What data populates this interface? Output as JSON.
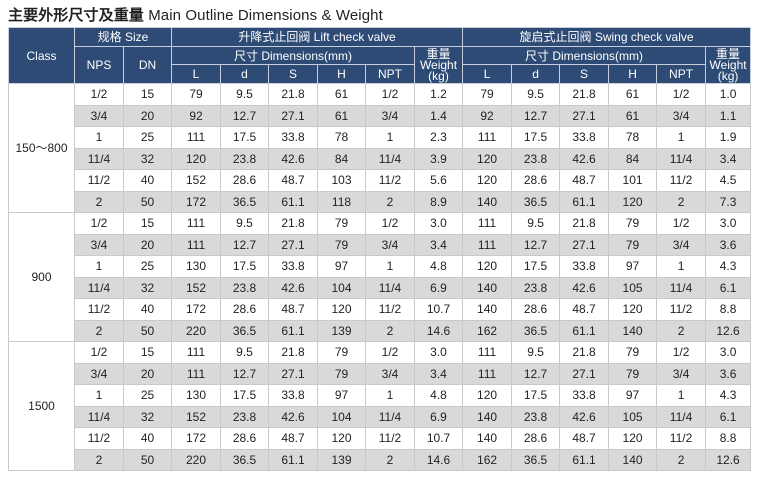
{
  "title": {
    "cn": "主要外形尺寸及重量",
    "en": "Main Outline Dimensions & Weight"
  },
  "headers": {
    "class": "Class",
    "size_group": "规格 Size",
    "nps": "NPS",
    "dn": "DN",
    "lift_valve": "升降式止回阀 Lift check valve",
    "swing_valve": "旋启式止回阀 Swing check valve",
    "dimensions": "尺寸 Dimensions(mm)",
    "weight_cn": "重量",
    "weight_en": "Weight",
    "weight_unit": "(kg)",
    "dim_cols": [
      "L",
      "d",
      "S",
      "H",
      "NPT"
    ]
  },
  "groups": [
    {
      "class": "150～800",
      "rows": [
        [
          "1/2",
          "15",
          "79",
          "9.5",
          "21.8",
          "61",
          "1/2",
          "1.2",
          "79",
          "9.5",
          "21.8",
          "61",
          "1/2",
          "1.0"
        ],
        [
          "3/4",
          "20",
          "92",
          "12.7",
          "27.1",
          "61",
          "3/4",
          "1.4",
          "92",
          "12.7",
          "27.1",
          "61",
          "3/4",
          "1.1"
        ],
        [
          "1",
          "25",
          "111",
          "17.5",
          "33.8",
          "78",
          "1",
          "2.3",
          "111",
          "17.5",
          "33.8",
          "78",
          "1",
          "1.9"
        ],
        [
          "11/4",
          "32",
          "120",
          "23.8",
          "42.6",
          "84",
          "11/4",
          "3.9",
          "120",
          "23.8",
          "42.6",
          "84",
          "11/4",
          "3.4"
        ],
        [
          "11/2",
          "40",
          "152",
          "28.6",
          "48.7",
          "103",
          "11/2",
          "5.6",
          "120",
          "28.6",
          "48.7",
          "101",
          "11/2",
          "4.5"
        ],
        [
          "2",
          "50",
          "172",
          "36.5",
          "61.1",
          "118",
          "2",
          "8.9",
          "140",
          "36.5",
          "61.1",
          "120",
          "2",
          "7.3"
        ]
      ]
    },
    {
      "class": "900",
      "rows": [
        [
          "1/2",
          "15",
          "111",
          "9.5",
          "21.8",
          "79",
          "1/2",
          "3.0",
          "111",
          "9.5",
          "21.8",
          "79",
          "1/2",
          "3.0"
        ],
        [
          "3/4",
          "20",
          "111",
          "12.7",
          "27.1",
          "79",
          "3/4",
          "3.4",
          "111",
          "12.7",
          "27.1",
          "79",
          "3/4",
          "3.6"
        ],
        [
          "1",
          "25",
          "130",
          "17.5",
          "33.8",
          "97",
          "1",
          "4.8",
          "120",
          "17.5",
          "33.8",
          "97",
          "1",
          "4.3"
        ],
        [
          "11/4",
          "32",
          "152",
          "23.8",
          "42.6",
          "104",
          "11/4",
          "6.9",
          "140",
          "23.8",
          "42.6",
          "105",
          "11/4",
          "6.1"
        ],
        [
          "11/2",
          "40",
          "172",
          "28.6",
          "48.7",
          "120",
          "11/2",
          "10.7",
          "140",
          "28.6",
          "48.7",
          "120",
          "11/2",
          "8.8"
        ],
        [
          "2",
          "50",
          "220",
          "36.5",
          "61.1",
          "139",
          "2",
          "14.6",
          "162",
          "36.5",
          "61.1",
          "140",
          "2",
          "12.6"
        ]
      ]
    },
    {
      "class": "1500",
      "rows": [
        [
          "1/2",
          "15",
          "111",
          "9.5",
          "21.8",
          "79",
          "1/2",
          "3.0",
          "111",
          "9.5",
          "21.8",
          "79",
          "1/2",
          "3.0"
        ],
        [
          "3/4",
          "20",
          "111",
          "12.7",
          "27.1",
          "79",
          "3/4",
          "3.4",
          "111",
          "12.7",
          "27.1",
          "79",
          "3/4",
          "3.6"
        ],
        [
          "1",
          "25",
          "130",
          "17.5",
          "33.8",
          "97",
          "1",
          "4.8",
          "120",
          "17.5",
          "33.8",
          "97",
          "1",
          "4.3"
        ],
        [
          "11/4",
          "32",
          "152",
          "23.8",
          "42.6",
          "104",
          "11/4",
          "6.9",
          "140",
          "23.8",
          "42.6",
          "105",
          "11/4",
          "6.1"
        ],
        [
          "11/2",
          "40",
          "172",
          "28.6",
          "48.7",
          "120",
          "11/2",
          "10.7",
          "140",
          "28.6",
          "48.7",
          "120",
          "11/2",
          "8.8"
        ],
        [
          "2",
          "50",
          "220",
          "36.5",
          "61.1",
          "139",
          "2",
          "14.6",
          "162",
          "36.5",
          "61.1",
          "140",
          "2",
          "12.6"
        ]
      ]
    }
  ],
  "colors": {
    "header_bg": "#2e4b75",
    "header_text": "#ffffff",
    "stripe": "#d9d9d9",
    "grid": "#c9c9c9"
  }
}
